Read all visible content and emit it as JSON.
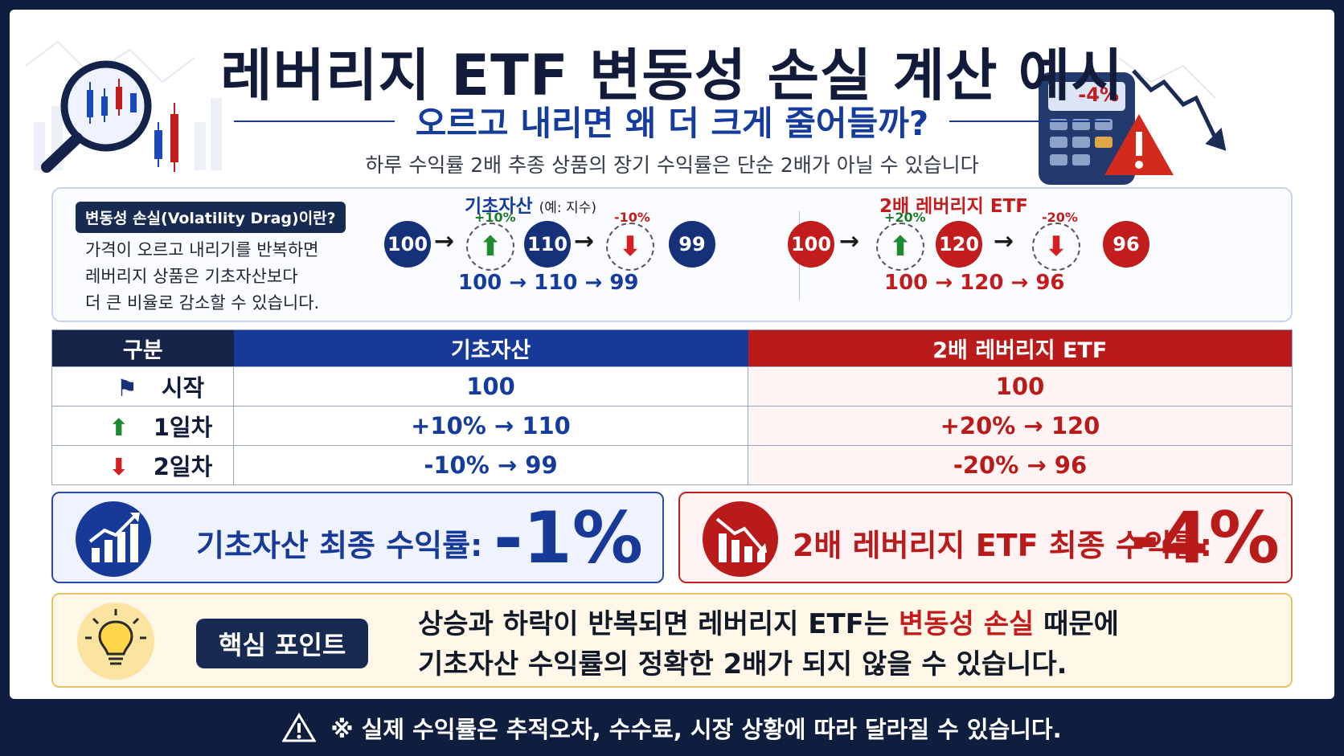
{
  "header": {
    "title": "레버리지 ETF 변동성 손실 계산 예시",
    "subtitle": "오르고 내리면 왜 더 크게 줄어들까?",
    "description": "하루 수익률 2배 추종 상품의 장기 수익률은 단순 2배가 아닐 수 있습니다",
    "calculator_display": "-4%"
  },
  "definition": {
    "badge": "변동성 손실(Volatility Drag)이란?",
    "lines": [
      "가격이 오르고 내리기를 반복하면",
      "레버리지 상품은 기초자산보다",
      "더 큰 비율로 감소할 수 있습니다."
    ]
  },
  "flow_base": {
    "title": "기초자산",
    "title_note": "(예: 지수)",
    "start": "100",
    "up_pct": "+10%",
    "mid": "110",
    "down_pct": "-10%",
    "end": "99",
    "sequence": "100 → 110 → 99"
  },
  "flow_lev": {
    "title": "2배 레버리지 ETF",
    "start": "100",
    "up_pct": "+20%",
    "mid": "120",
    "down_pct": "-20%",
    "end": "96",
    "sequence": "100 → 120 → 96"
  },
  "table": {
    "headers": [
      "구분",
      "기초자산",
      "2배 레버리지 ETF"
    ],
    "rows": [
      {
        "label": "시작",
        "base": "100",
        "lev": "100"
      },
      {
        "label": "1일차",
        "base": "+10% → 110",
        "lev": "+20% → 120"
      },
      {
        "label": "2일차",
        "base": "-10% →  99",
        "lev": "-20% →  96"
      }
    ]
  },
  "results": {
    "base_label": "기초자산 최종 수익률:",
    "base_value": "-1%",
    "lev_label": "2배 레버리지 ETF 최종 수익률:",
    "lev_value": "-4%"
  },
  "key_point": {
    "badge": "핵심 포인트",
    "line1_before": "상승과 하락이 반복되면 레버리지 ETF는 ",
    "line1_highlight": "변동성 손실",
    "line1_after": " 때문에",
    "line2": "기초자산 수익률의 정확한 2배가 되지 않을 수 있습니다."
  },
  "footer": {
    "note": "※ 실제 수익률은 추적오차, 수수료, 시장 상황에 따라 달라질 수 있습니다."
  }
}
